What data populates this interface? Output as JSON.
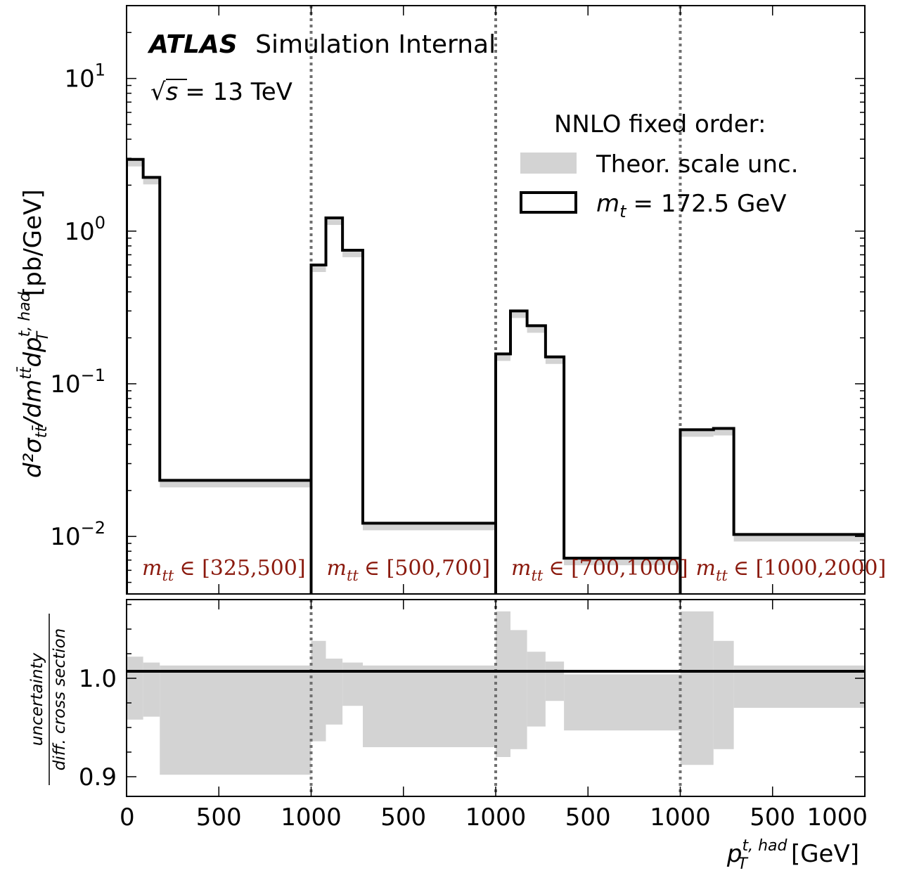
{
  "chart_data": {
    "type": "line",
    "subtype": "step",
    "top_panel": {
      "yscale": "log",
      "ylim": [
        0.0042,
        30
      ],
      "yticks": [
        {
          "value": 10,
          "base": "10",
          "exp": "1"
        },
        {
          "value": 1,
          "base": "10",
          "exp": "0"
        },
        {
          "value": 0.1,
          "base": "10",
          "exp": "−1"
        },
        {
          "value": 0.01,
          "base": "10",
          "exp": "−2"
        }
      ],
      "ylabel_parts": {
        "main": "d²σ",
        "sub1": "tt̄",
        "mid": "/dm",
        "sup1": "tt̄",
        "mid2": "dp",
        "sup2": "t, had",
        "sub2": "T",
        "unit": " [pb/GeV]"
      }
    },
    "bottom_panel": {
      "ylim": [
        0.88,
        1.08
      ],
      "yticks": [
        {
          "value": 0.9,
          "label": "0.9"
        },
        {
          "value": 1.0,
          "label": "1.0"
        }
      ],
      "ylabel_num": "uncertainty",
      "ylabel_den": "diff. cross section"
    },
    "x_ticks": [
      "0",
      "500",
      "1000",
      "500",
      "1000",
      "500",
      "1000",
      "500",
      "1000"
    ],
    "xlabel_main": "p",
    "xlabel_sup": "t, had",
    "xlabel_sub": "T",
    "xlabel_unit": "[GeV]",
    "regions": [
      {
        "label_var": "m",
        "label_sub": "tt",
        "label_range": "∈ [325,500]",
        "bins": [
          {
            "lo": 0,
            "hi": 90,
            "value": 2.95,
            "band_lo": 0.958,
            "band_hi": 1.022
          },
          {
            "lo": 90,
            "hi": 180,
            "value": 2.25,
            "band_lo": 0.961,
            "band_hi": 1.016
          },
          {
            "lo": 180,
            "hi": 1000,
            "value": 0.0233,
            "band_lo": 0.902,
            "band_hi": 1.013
          }
        ]
      },
      {
        "label_var": "m",
        "label_sub": "tt",
        "label_range": "∈ [500,700]",
        "bins": [
          {
            "lo": 0,
            "hi": 80,
            "value": 0.6,
            "band_lo": 0.936,
            "band_hi": 1.038
          },
          {
            "lo": 80,
            "hi": 170,
            "value": 1.22,
            "band_lo": 0.953,
            "band_hi": 1.02
          },
          {
            "lo": 170,
            "hi": 280,
            "value": 0.75,
            "band_lo": 0.972,
            "band_hi": 1.016
          },
          {
            "lo": 280,
            "hi": 1000,
            "value": 0.0122,
            "band_lo": 0.93,
            "band_hi": 1.013
          }
        ]
      },
      {
        "label_var": "m",
        "label_sub": "tt",
        "label_range": "∈ [700,1000]",
        "bins": [
          {
            "lo": 0,
            "hi": 80,
            "value": 0.157,
            "band_lo": 0.92,
            "band_hi": 1.068
          },
          {
            "lo": 80,
            "hi": 170,
            "value": 0.3,
            "band_lo": 0.928,
            "band_hi": 1.049
          },
          {
            "lo": 170,
            "hi": 270,
            "value": 0.24,
            "band_lo": 0.951,
            "band_hi": 1.027
          },
          {
            "lo": 270,
            "hi": 370,
            "value": 0.15,
            "band_lo": 0.977,
            "band_hi": 1.017
          },
          {
            "lo": 370,
            "hi": 1000,
            "value": 0.0072,
            "band_lo": 0.947,
            "band_hi": 1.004
          }
        ]
      },
      {
        "label_var": "m",
        "label_sub": "tt",
        "label_range": "∈ [1000,2000]",
        "bins": [
          {
            "lo": 0,
            "hi": 180,
            "value": 0.05,
            "band_lo": 0.912,
            "band_hi": 1.068
          },
          {
            "lo": 180,
            "hi": 290,
            "value": 0.051,
            "band_lo": 0.928,
            "band_hi": 1.038
          },
          {
            "lo": 290,
            "hi": 1000,
            "value": 0.0103,
            "band_lo": 0.97,
            "band_hi": 1.013
          }
        ]
      }
    ],
    "legend": {
      "placement": "top-right",
      "title": "NNLO fixed order:",
      "band_label": "Theor. scale unc.",
      "line_label_var": "m",
      "line_label_sub": "t",
      "line_label_value": "= 172.5 GeV"
    },
    "colors": {
      "band": "#d3d3d3",
      "line": "#000000",
      "region_label": "#8b1a0e",
      "divider": "#707070"
    }
  },
  "annotations": {
    "experiment": "ATLAS",
    "status": "Simulation Internal",
    "energy_prefix": "√",
    "energy_var": "s",
    "energy_value": "= 13 TeV"
  }
}
